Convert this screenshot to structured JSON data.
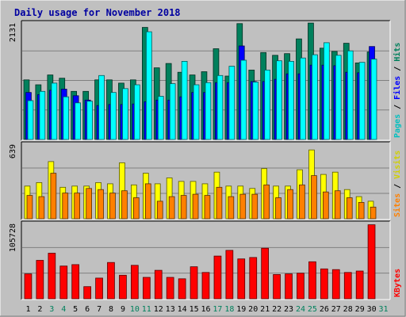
{
  "chart_data": {
    "type": "bar",
    "title": "Daily usage for November 2018",
    "categories": [
      "1",
      "2",
      "3",
      "4",
      "5",
      "6",
      "7",
      "8",
      "9",
      "10",
      "11",
      "12",
      "13",
      "14",
      "15",
      "16",
      "17",
      "18",
      "19",
      "20",
      "21",
      "22",
      "23",
      "24",
      "25",
      "26",
      "27",
      "28",
      "29",
      "30",
      "31"
    ],
    "weekend_days": [
      "3",
      "4",
      "10",
      "11",
      "17",
      "18",
      "24",
      "25",
      "31"
    ],
    "panels": [
      {
        "key": "top",
        "ymax_label": "2131",
        "ymax": 2131,
        "series": [
          {
            "name": "Hits",
            "color": "#00805c",
            "values": [
              1090,
              1000,
              1180,
              1120,
              880,
              880,
              1090,
              1090,
              1030,
              1090,
              2050,
              1310,
              1390,
              1230,
              1180,
              1240,
              1660,
              1160,
              2120,
              1270,
              1590,
              1540,
              1570,
              1840,
              2130,
              1670,
              1610,
              1760,
              1400,
              1600,
              null
            ]
          },
          {
            "name": "Files",
            "color": "#0000ff",
            "values": [
              860,
              820,
              900,
              920,
              800,
              720,
              620,
              640,
              640,
              650,
              690,
              720,
              720,
              780,
              860,
              860,
              1040,
              1040,
              1710,
              1060,
              1060,
              1100,
              1200,
              1200,
              1360,
              1360,
              1350,
              1230,
              1220,
              1700,
              null
            ]
          },
          {
            "name": "Pages",
            "color": "#00ffff",
            "values": [
              710,
              880,
              1030,
              780,
              670,
              700,
              1170,
              860,
              930,
              1000,
              1970,
              790,
              1020,
              1430,
              1000,
              1040,
              1170,
              1340,
              1450,
              1050,
              1270,
              1440,
              1430,
              1490,
              1550,
              1770,
              1540,
              1620,
              1410,
              1470,
              null
            ]
          }
        ]
      },
      {
        "key": "mid",
        "ymax_label": "639",
        "ymax": 639,
        "series": [
          {
            "name": "Visits",
            "color": "#ffff00",
            "values": [
              280,
              310,
              490,
              270,
              280,
              280,
              310,
              300,
              480,
              290,
              390,
              300,
              350,
              320,
              320,
              300,
              400,
              280,
              280,
              260,
              430,
              280,
              280,
              420,
              590,
              380,
              400,
              250,
              190,
              150,
              null
            ]
          },
          {
            "name": "Sites",
            "color": "#ff8000",
            "values": [
              200,
              190,
              390,
              220,
              220,
              260,
              250,
              220,
              240,
              180,
              300,
              150,
              190,
              200,
              210,
              200,
              270,
              190,
              210,
              210,
              290,
              180,
              250,
              290,
              370,
              230,
              240,
              180,
              140,
              100,
              null
            ]
          }
        ]
      },
      {
        "key": "bot",
        "ymax_label": "105728",
        "ymax": 105728,
        "series": [
          {
            "name": "KBytes",
            "color": "#ff0000",
            "values": [
              35000,
              54000,
              64000,
              46000,
              48000,
              17000,
              29000,
              51000,
              33000,
              47000,
              30000,
              40000,
              30000,
              28000,
              45000,
              37000,
              60000,
              68000,
              56000,
              58000,
              71000,
              34000,
              35000,
              36000,
              52000,
              42000,
              41000,
              37000,
              39000,
              104000,
              null
            ]
          }
        ]
      }
    ]
  }
}
